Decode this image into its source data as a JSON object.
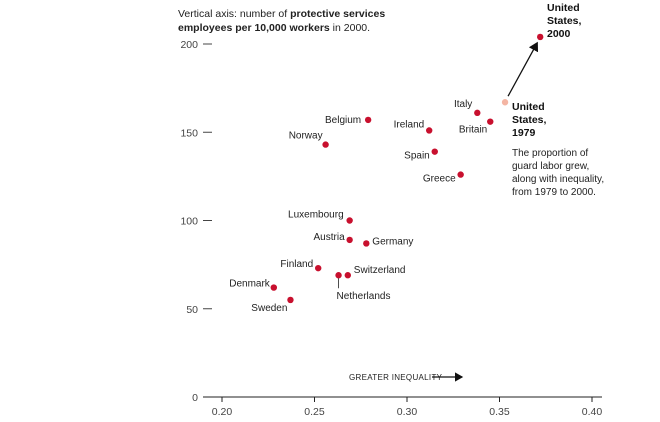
{
  "chart_data": {
    "type": "scatter",
    "title": "",
    "ylabel_prefix": "Vertical axis: number of ",
    "ylabel_bold1": "protective services",
    "ylabel_bold2": "employees per 10,000 workers",
    "ylabel_suffix": " in 2000.",
    "xlabel": "GREATER INEQUALITY",
    "xlim": [
      0.19,
      0.4
    ],
    "ylim": [
      0,
      200
    ],
    "x_ticks": [
      "0.20",
      "0.25",
      "0.30",
      "0.35",
      "0.40"
    ],
    "x_tick_values": [
      0.2,
      0.25,
      0.3,
      0.35,
      0.4
    ],
    "y_ticks": [
      "0",
      "50",
      "100",
      "150",
      "200"
    ],
    "y_tick_values": [
      0,
      50,
      100,
      150,
      200
    ],
    "points": [
      {
        "name": "Belgium",
        "x": 0.279,
        "y": 157,
        "color": "#c8102e"
      },
      {
        "name": "Norway",
        "x": 0.256,
        "y": 143,
        "color": "#c8102e"
      },
      {
        "name": "Italy",
        "x": 0.338,
        "y": 161,
        "color": "#c8102e"
      },
      {
        "name": "Ireland",
        "x": 0.312,
        "y": 151,
        "color": "#c8102e"
      },
      {
        "name": "Britain",
        "x": 0.345,
        "y": 156,
        "color": "#c8102e"
      },
      {
        "name": "Spain",
        "x": 0.315,
        "y": 139,
        "color": "#c8102e"
      },
      {
        "name": "Greece",
        "x": 0.329,
        "y": 126,
        "color": "#c8102e"
      },
      {
        "name": "Luxembourg",
        "x": 0.269,
        "y": 100,
        "color": "#c8102e"
      },
      {
        "name": "Austria",
        "x": 0.269,
        "y": 89,
        "color": "#c8102e"
      },
      {
        "name": "Germany",
        "x": 0.278,
        "y": 87,
        "color": "#c8102e"
      },
      {
        "name": "Finland",
        "x": 0.252,
        "y": 73,
        "color": "#c8102e"
      },
      {
        "name": "Switzerland",
        "x": 0.268,
        "y": 69,
        "color": "#c8102e"
      },
      {
        "name": "Netherlands",
        "x": 0.263,
        "y": 69,
        "color": "#c8102e"
      },
      {
        "name": "Denmark",
        "x": 0.228,
        "y": 62,
        "color": "#c8102e"
      },
      {
        "name": "Sweden",
        "x": 0.237,
        "y": 55,
        "color": "#c8102e"
      },
      {
        "name": "United States, 1979",
        "x": 0.353,
        "y": 167,
        "color": "#f4b5a3"
      },
      {
        "name": "United States, 2000",
        "x": 0.372,
        "y": 204,
        "color": "#c8102e"
      }
    ],
    "annotations": {
      "us2000": [
        "United",
        "States,",
        "2000"
      ],
      "us1979": [
        "United",
        "States,",
        "1979"
      ],
      "note": "The proportion of guard labor grew, along with inequality, from 1979 to 2000."
    }
  }
}
